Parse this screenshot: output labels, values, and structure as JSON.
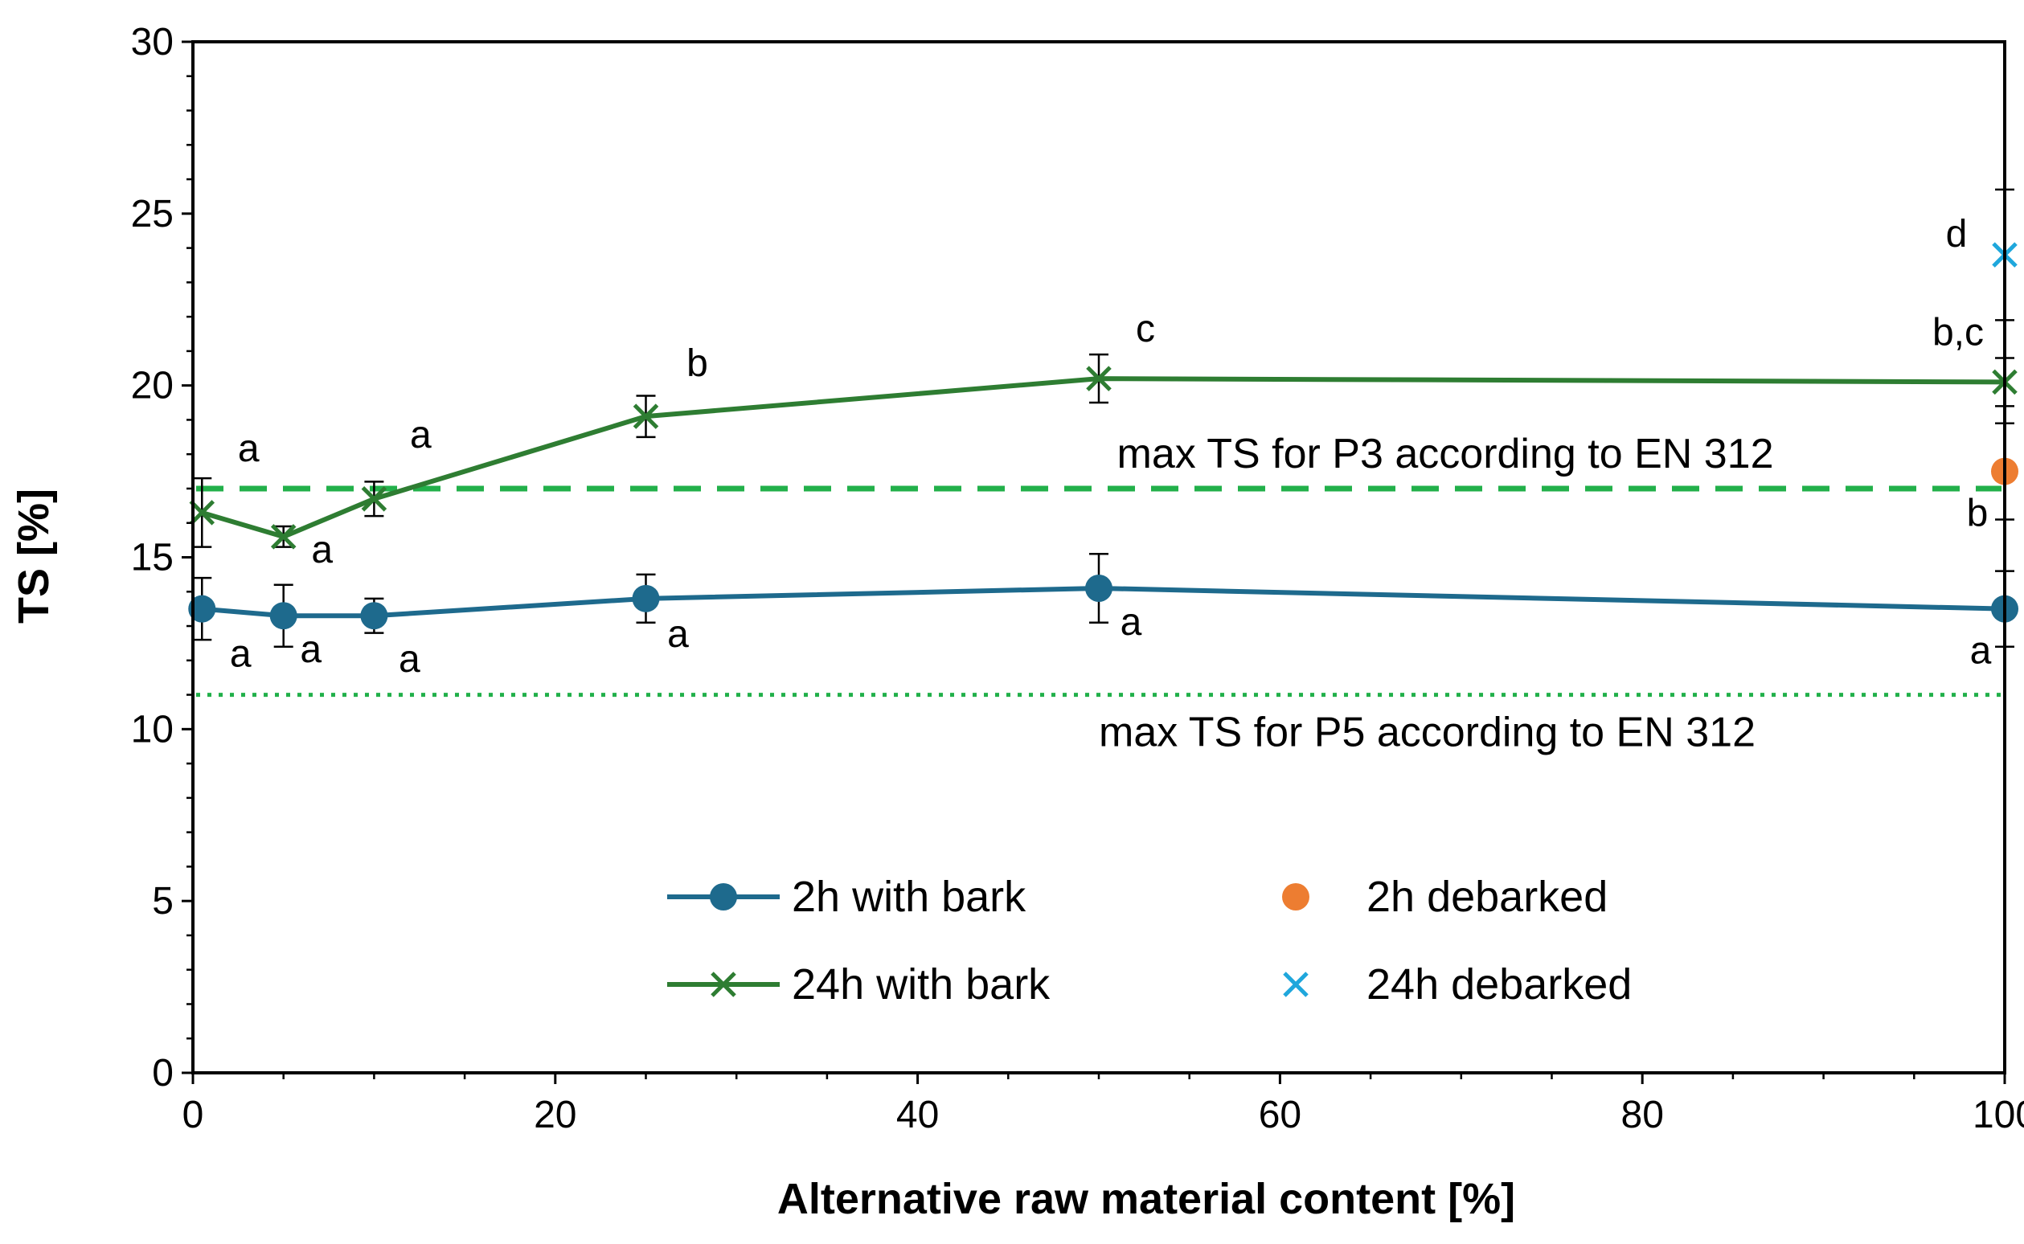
{
  "chart_data": {
    "type": "line",
    "title": "",
    "xlabel": "Alternative raw material content [%]",
    "ylabel": "TS [%]",
    "xlim": [
      0,
      100
    ],
    "ylim": [
      0,
      30
    ],
    "x_ticks": [
      0,
      20,
      40,
      60,
      80,
      100
    ],
    "y_ticks": [
      0,
      5,
      10,
      15,
      20,
      25,
      30
    ],
    "grid": false,
    "legend_position": "bottom-center",
    "colors": {
      "blue": "#1e6a8d",
      "green": "#2e7d32",
      "ref_green": "#22b04a",
      "orange": "#ed7d31",
      "cyan": "#1fa7dc"
    },
    "series": [
      {
        "name": "2h with bark",
        "marker": "circle",
        "connected": true,
        "color": "#1e6a8d",
        "x": [
          0.5,
          5,
          10,
          25,
          50,
          100
        ],
        "y": [
          13.5,
          13.3,
          13.3,
          13.8,
          14.1,
          13.5
        ],
        "err": [
          0.9,
          0.9,
          0.5,
          0.7,
          1.0,
          1.1
        ],
        "letters": [
          "a",
          "a",
          "a",
          "a",
          "a",
          "a"
        ]
      },
      {
        "name": "24h with bark",
        "marker": "x",
        "connected": true,
        "color": "#2e7d32",
        "x": [
          0.5,
          5,
          10,
          25,
          50,
          100
        ],
        "y": [
          16.3,
          15.6,
          16.7,
          19.1,
          20.2,
          20.1
        ],
        "err": [
          1.0,
          0.3,
          0.5,
          0.6,
          0.7,
          0.7
        ],
        "letters": [
          "a",
          "a",
          "a",
          "b",
          "c",
          "b,c"
        ]
      },
      {
        "name": "2h debarked",
        "marker": "circle",
        "connected": false,
        "color": "#ed7d31",
        "x": [
          100
        ],
        "y": [
          17.5
        ],
        "err": [
          1.4
        ],
        "letters": [
          "b"
        ]
      },
      {
        "name": "24h debarked",
        "marker": "x",
        "connected": false,
        "color": "#1fa7dc",
        "x": [
          100
        ],
        "y": [
          23.8
        ],
        "err": [
          1.9
        ],
        "letters": [
          "d"
        ]
      }
    ],
    "reference_lines": [
      {
        "y": 17,
        "style": "dashed",
        "color": "#22b04a",
        "label": "max TS for P3 according to EN 312"
      },
      {
        "y": 11,
        "style": "dotted",
        "color": "#22b04a",
        "label": "max TS for P5 according to EN 312"
      }
    ]
  }
}
